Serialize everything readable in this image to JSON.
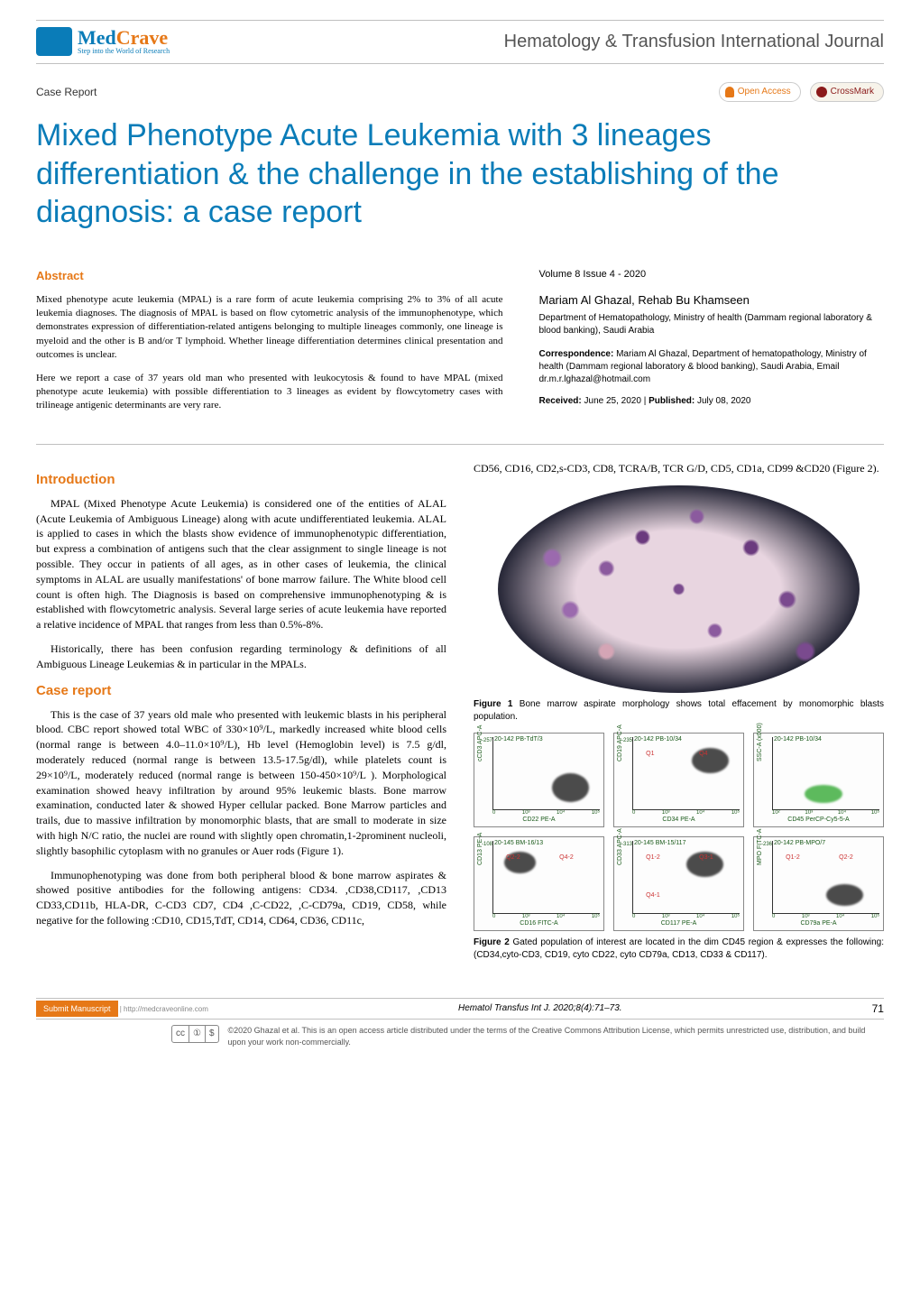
{
  "brand": {
    "name_a": "Med",
    "name_b": "Crave",
    "tagline": "Step into the World of Research",
    "color_a": "#0a7cb8",
    "color_b": "#e67817"
  },
  "journal": "Hematology & Transfusion International Journal",
  "article_type": "Case Report",
  "badges": {
    "open_access": "Open Access",
    "crossmark": "CrossMark"
  },
  "title": "Mixed Phenotype Acute Leukemia with 3 lineages differentiation & the challenge in the establishing of the diagnosis: a case report",
  "abstract": {
    "heading": "Abstract",
    "p1": "Mixed phenotype acute leukemia (MPAL) is a rare form of acute leukemia comprising 2% to 3% of all acute leukemia diagnoses. The diagnosis of MPAL is based on flow cytometric analysis of the immunophenotype, which demonstrates expression of differentiation-related antigens belonging to multiple lineages commonly, one lineage is myeloid and the other is B and/or T lymphoid. Whether lineage differentiation determines clinical presentation and outcomes is unclear.",
    "p2": "Here we report a case of 37 years old man who presented with leukocytosis & found to have MPAL (mixed phenotype acute leukemia) with possible differentiation to 3 lineages as evident by flowcytometry cases with trilineage antigenic determinants are very rare."
  },
  "meta": {
    "vol_issue": "Volume 8 Issue 4 - 2020",
    "authors": "Mariam Al Ghazal, Rehab Bu Khamseen",
    "affiliation": "Department of Hematopathology, Ministry of health (Dammam regional laboratory & blood banking), Saudi Arabia",
    "correspondence_label": "Correspondence:",
    "correspondence": " Mariam Al Ghazal, Department of hematopathology, Ministry of health (Dammam regional laboratory & blood banking), Saudi Arabia, Email dr.m.r.lghazal@hotmail.com",
    "received_label": "Received:",
    "received": " June 25, 2020 | ",
    "published_label": "Published:",
    "published": " July 08, 2020"
  },
  "sections": {
    "intro_heading": "Introduction",
    "intro_p1": "MPAL (Mixed Phenotype Acute Leukemia) is considered one of the entities of ALAL (Acute Leukemia of Ambiguous Lineage) along with acute undifferentiated leukemia. ALAL is applied to cases in which the blasts show evidence of immunophenotypic differentiation, but express a combination of antigens such that the clear assignment to single lineage is not possible. They occur in patients of all ages, as in other cases of leukemia, the clinical symptoms in ALAL are usually manifestations' of bone marrow failure. The White blood cell count is often high. The Diagnosis is based on comprehensive immunophenotyping & is established with flowcytometric analysis. Several large series of acute leukemia have reported a relative incidence of MPAL that ranges from less than 0.5%-8%.",
    "intro_p2": "Historically, there has been confusion regarding terminology & definitions of all Ambiguous Lineage Leukemias & in particular in the MPALs.",
    "case_heading": "Case report",
    "case_p1": "This is the case of 37 years old male who presented with leukemic blasts in his peripheral blood. CBC report showed total WBC of 330×10⁹/L, markedly increased white blood cells (normal range is between 4.0–11.0×10⁹/L), Hb level (Hemoglobin level) is 7.5 g/dl, moderately reduced (normal range is between 13.5-17.5g/dl), while platelets count is 29×10⁹/L, moderately reduced (normal range is between 150-450×10⁹/L ). Morphological examination showed heavy infiltration by around 95% leukemic blasts. Bone marrow examination, conducted later & showed Hyper cellular packed. Bone Marrow particles and trails, due to massive infiltration by monomorphic blasts, that are small to moderate in size with high N/C ratio, the nuclei are round with slightly open chromatin,1-2prominent nucleoli, slightly basophilic cytoplasm with no granules or Auer rods (Figure 1).",
    "case_p2": "Immunophenotyping was done from both peripheral blood & bone marrow aspirates & showed positive antibodies for the following antigens: CD34. ,CD38,CD117, ,CD13 CD33,CD11b, HLA-DR, C-CD3 CD7, CD4 ,C-CD22, ,C-CD79a, CD19, CD58, while negative for the following :CD10, CD15,TdT, CD14, CD64, CD36, CD11c,",
    "right_continue": "CD56, CD16, CD2,s-CD3, CD8, TCRA/B, TCR G/D, CD5, CD1a, CD99 &CD20 (Figure 2)."
  },
  "figures": {
    "fig1_caption_bold": "Figure 1",
    "fig1_caption": " Bone marrow aspirate morphology shows total effacement by monomorphic blasts population.",
    "fig2_caption_bold": "Figure 2",
    "fig2_caption": " Gated population of interest are located in the dim CD45 region & expresses the following: (CD34,cyto-CD3, CD19, cyto CD22, cyto CD79a, CD13, CD33 & CD117).",
    "scatter_plots": [
      {
        "title": "20-142 PB-TdT/3",
        "ylabel": "cCD3 APC-A",
        "xlabel": "CD22 PE-A",
        "cloud": {
          "left": "55%",
          "bottom": "10%",
          "w": "35%",
          "h": "40%",
          "color": "#000000"
        },
        "ticks": [
          "0",
          "10³",
          "10⁴",
          "10⁵"
        ],
        "ystart": "-257"
      },
      {
        "title": "20-142 PB-10/34",
        "ylabel": "CD19 APC-A",
        "xlabel": "CD34 PE-A",
        "cloud": {
          "left": "55%",
          "bottom": "50%",
          "w": "35%",
          "h": "35%",
          "color": "#000000"
        },
        "ticks": [
          "0",
          "10³",
          "10⁴",
          "10⁵"
        ],
        "ystart": "-235",
        "quads": [
          "Q1",
          "Q4"
        ]
      },
      {
        "title": "20-142 PB-10/34",
        "ylabel": "SSC-A (x000)",
        "xlabel": "CD45 PerCP-Cy5-5-A",
        "cloud": {
          "left": "30%",
          "bottom": "8%",
          "w": "35%",
          "h": "25%",
          "color": "#1a9e1a"
        },
        "ticks": [
          "10²",
          "10³",
          "10⁴",
          "10⁵"
        ]
      },
      {
        "title": "20-145 BM-16/13",
        "ylabel": "CD13 PE-A",
        "xlabel": "CD16 FITC-A",
        "cloud": {
          "left": "10%",
          "bottom": "55%",
          "w": "30%",
          "h": "30%",
          "color": "#000000"
        },
        "ticks": [
          "0",
          "10³",
          "10⁴",
          "10⁵"
        ],
        "ystart": "-108",
        "quads": [
          "Q2-2",
          "Q4-2"
        ]
      },
      {
        "title": "20-145 BM-15/117",
        "ylabel": "CD33 APC-A",
        "xlabel": "CD117 PE-A",
        "cloud": {
          "left": "50%",
          "bottom": "50%",
          "w": "35%",
          "h": "35%",
          "color": "#000000"
        },
        "ticks": [
          "0",
          "10³",
          "10⁴",
          "10⁵"
        ],
        "ystart": "-313",
        "quads": [
          "Q1-2",
          "Q3-1",
          "Q4-1"
        ]
      },
      {
        "title": "20-142 PB-MPO/7",
        "ylabel": "MPO FITC-A",
        "xlabel": "CD79a PE-A",
        "cloud": {
          "left": "50%",
          "bottom": "10%",
          "w": "35%",
          "h": "30%",
          "color": "#000000"
        },
        "ticks": [
          "0",
          "10³",
          "10⁴",
          "10⁵"
        ],
        "ystart": "-236",
        "quads": [
          "Q1-2",
          "Q2-2"
        ]
      }
    ]
  },
  "footer": {
    "submit_label": "Submit Manuscript",
    "submit_url": " | http://medcraveonline.com",
    "citation": "Hematol Transfus Int J. 2020;8(4):71‒73.",
    "page_num": "71",
    "cc_parts": [
      "cc",
      "①",
      "$"
    ],
    "copyright": "©2020 Ghazal et al. This is an open access article distributed under the terms of the Creative Commons Attribution License, which permits unrestricted use, distribution, and build upon your work non-commercially."
  },
  "colors": {
    "accent_blue": "#0a7cb8",
    "accent_orange": "#e67817",
    "text": "#000000",
    "divider": "#c0c0c0",
    "meta_text": "#333333"
  }
}
